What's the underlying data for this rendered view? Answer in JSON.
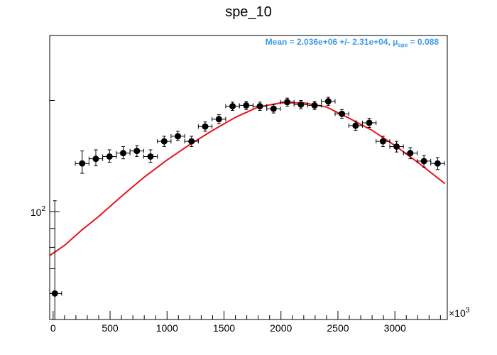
{
  "chart_data": {
    "type": "scatter",
    "title": "spe_10",
    "xlabel": "",
    "ylabel": "",
    "x_multiplier_label": "×10",
    "x_multiplier_exp": "3",
    "xlim": [
      -30,
      3460
    ],
    "ylim": [
      51,
      300
    ],
    "y_scale": "log",
    "x_ticks": [
      0,
      500,
      1000,
      1500,
      2000,
      2500,
      3000
    ],
    "x_tick_labels": [
      "0",
      "500",
      "1000",
      "1500",
      "2000",
      "2500",
      "3000"
    ],
    "y_major_tick_label_base": "10",
    "y_major_tick_label_exp": "2",
    "y_major_tick_value": 100,
    "grid": false,
    "annotation": {
      "prefix": "Mean = 2.036e+06 +/- 2.31e+04, ",
      "mu_symbol": "μ",
      "mu_subscript": "spe",
      "suffix": " = 0.088",
      "color": "#3d9be9"
    },
    "series": [
      {
        "type": "points",
        "color": "#000000",
        "x_err": 60,
        "points": [
          {
            "x": 15,
            "y": 60,
            "ylo": 43,
            "yhi": 107
          },
          {
            "x": 255,
            "y": 135,
            "ylo": 127,
            "yhi": 146
          },
          {
            "x": 375,
            "y": 139,
            "ylo": 133,
            "yhi": 147
          },
          {
            "x": 495,
            "y": 141,
            "ylo": 136,
            "yhi": 147
          },
          {
            "x": 615,
            "y": 144,
            "ylo": 139,
            "yhi": 150
          },
          {
            "x": 735,
            "y": 146,
            "ylo": 141,
            "yhi": 151
          },
          {
            "x": 855,
            "y": 141,
            "ylo": 136,
            "yhi": 147
          },
          {
            "x": 975,
            "y": 155,
            "ylo": 150,
            "yhi": 160
          },
          {
            "x": 1095,
            "y": 160,
            "ylo": 156,
            "yhi": 165
          },
          {
            "x": 1215,
            "y": 155,
            "ylo": 150,
            "yhi": 160
          },
          {
            "x": 1335,
            "y": 170,
            "ylo": 165,
            "yhi": 175
          },
          {
            "x": 1455,
            "y": 178,
            "ylo": 173,
            "yhi": 183
          },
          {
            "x": 1575,
            "y": 193,
            "ylo": 188,
            "yhi": 198
          },
          {
            "x": 1695,
            "y": 194,
            "ylo": 189,
            "yhi": 199
          },
          {
            "x": 1815,
            "y": 193,
            "ylo": 188,
            "yhi": 198
          },
          {
            "x": 1935,
            "y": 190,
            "ylo": 185,
            "yhi": 195
          },
          {
            "x": 2055,
            "y": 198,
            "ylo": 193,
            "yhi": 203
          },
          {
            "x": 2175,
            "y": 195,
            "ylo": 190,
            "yhi": 200
          },
          {
            "x": 2295,
            "y": 194,
            "ylo": 189,
            "yhi": 199
          },
          {
            "x": 2415,
            "y": 199,
            "ylo": 194,
            "yhi": 204
          },
          {
            "x": 2535,
            "y": 184,
            "ylo": 179,
            "yhi": 189
          },
          {
            "x": 2655,
            "y": 171,
            "ylo": 166,
            "yhi": 176
          },
          {
            "x": 2775,
            "y": 174,
            "ylo": 169,
            "yhi": 179
          },
          {
            "x": 2895,
            "y": 155,
            "ylo": 150,
            "yhi": 160
          },
          {
            "x": 3015,
            "y": 150,
            "ylo": 145,
            "yhi": 155
          },
          {
            "x": 3135,
            "y": 144,
            "ylo": 139,
            "yhi": 149
          },
          {
            "x": 3255,
            "y": 137,
            "ylo": 132,
            "yhi": 142
          },
          {
            "x": 3375,
            "y": 135,
            "ylo": 130,
            "yhi": 140
          }
        ]
      },
      {
        "type": "line",
        "color": "#e8141c",
        "x": [
          -30,
          100,
          250,
          400,
          600,
          800,
          1000,
          1200,
          1400,
          1600,
          1800,
          2000,
          2100,
          2200,
          2400,
          2600,
          2800,
          3000,
          3200,
          3440
        ],
        "y": [
          76,
          81,
          89,
          97,
          110,
          124,
          138,
          152,
          166,
          180,
          192,
          197,
          197,
          197,
          192,
          179,
          166,
          151,
          136,
          119
        ]
      }
    ]
  }
}
